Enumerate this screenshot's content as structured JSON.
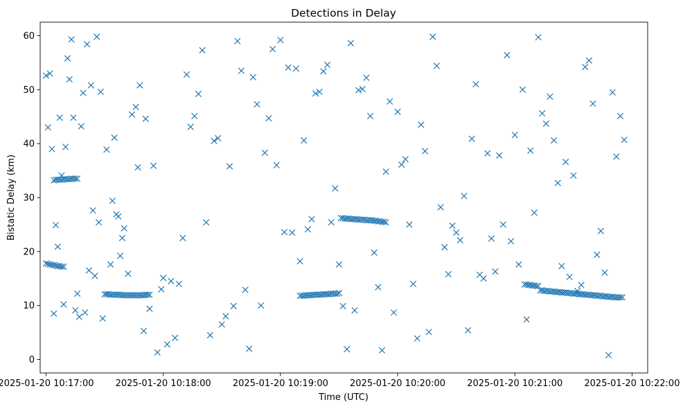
{
  "chart_data": {
    "type": "scatter",
    "title": "Detections in Delay",
    "xlabel": "Time (UTC)",
    "ylabel": "Bistatic Delay (km)",
    "xlim": [
      "2025-01-20 10:16:57",
      "2025-01-20 10:22:08"
    ],
    "ylim": [
      -2.5,
      62.5
    ],
    "x_ticks": [
      "2025-01-20 10:17:00",
      "2025-01-20 10:18:00",
      "2025-01-20 10:19:00",
      "2025-01-20 10:20:00",
      "2025-01-20 10:21:00",
      "2025-01-20 10:22:00"
    ],
    "y_ticks": [
      0,
      10,
      20,
      30,
      40,
      50,
      60
    ],
    "grid": false,
    "marker": "x",
    "color": "#1f77b4",
    "series": [
      {
        "x": [
          "10:17:00",
          "10:17:01",
          "10:17:02",
          "10:17:03",
          "10:17:04",
          "10:17:05",
          "10:17:06",
          "10:17:07",
          "10:17:08",
          "10:17:09",
          "10:17:04",
          "10:17:05",
          "10:17:06",
          "10:17:07",
          "10:17:08",
          "10:17:09",
          "10:17:10",
          "10:17:11",
          "10:17:12",
          "10:17:13",
          "10:17:14",
          "10:17:15",
          "10:17:16",
          "10:17:30",
          "10:17:31",
          "10:17:32",
          "10:17:33",
          "10:17:34",
          "10:17:35",
          "10:17:36",
          "10:17:37",
          "10:17:38",
          "10:17:39",
          "10:17:40",
          "10:17:41",
          "10:17:42",
          "10:17:43",
          "10:17:44",
          "10:17:45",
          "10:17:46",
          "10:17:47",
          "10:17:48",
          "10:17:49",
          "10:17:50",
          "10:17:51",
          "10:17:52",
          "10:17:53",
          "10:19:10",
          "10:19:11",
          "10:19:12",
          "10:19:13",
          "10:19:14",
          "10:19:15",
          "10:19:16",
          "10:19:17",
          "10:19:18",
          "10:19:19",
          "10:19:20",
          "10:19:21",
          "10:19:22",
          "10:19:23",
          "10:19:24",
          "10:19:25",
          "10:19:26",
          "10:19:27",
          "10:19:28",
          "10:19:29",
          "10:19:30",
          "10:19:31",
          "10:19:32",
          "10:19:33",
          "10:19:34",
          "10:19:35",
          "10:19:36",
          "10:19:37",
          "10:19:38",
          "10:19:39",
          "10:19:40",
          "10:19:41",
          "10:19:42",
          "10:19:43",
          "10:19:44",
          "10:19:45",
          "10:19:46",
          "10:19:47",
          "10:19:48",
          "10:19:49",
          "10:19:50",
          "10:19:51",
          "10:19:52",
          "10:19:53",
          "10:19:54",
          "10:21:05",
          "10:21:06",
          "10:21:07",
          "10:21:08",
          "10:21:09",
          "10:21:10",
          "10:21:11",
          "10:21:12",
          "10:21:13",
          "10:21:14",
          "10:21:15",
          "10:21:16",
          "10:21:17",
          "10:21:18",
          "10:21:19",
          "10:21:20",
          "10:21:21",
          "10:21:22",
          "10:21:23",
          "10:21:24",
          "10:21:25",
          "10:21:26",
          "10:21:27",
          "10:21:28",
          "10:21:29",
          "10:21:30",
          "10:21:31",
          "10:21:32",
          "10:21:33",
          "10:21:34",
          "10:21:35",
          "10:21:36",
          "10:21:37",
          "10:21:38",
          "10:21:39",
          "10:21:40",
          "10:21:41",
          "10:21:42",
          "10:21:43",
          "10:21:44",
          "10:21:45",
          "10:21:46",
          "10:21:47",
          "10:21:48",
          "10:21:49",
          "10:21:50",
          "10:21:51",
          "10:21:52",
          "10:21:53",
          "10:21:54",
          "10:21:55",
          "10:17:00",
          "10:17:01",
          "10:17:02",
          "10:17:03",
          "10:17:04",
          "10:17:05",
          "10:17:06",
          "10:17:07",
          "10:17:08",
          "10:17:09",
          "10:17:10",
          "10:17:11",
          "10:17:12",
          "10:17:13",
          "10:17:14",
          "10:17:15",
          "10:17:16",
          "10:17:17",
          "10:17:18",
          "10:17:19",
          "10:17:20",
          "10:17:21",
          "10:17:22",
          "10:17:23",
          "10:17:24",
          "10:17:25",
          "10:17:26",
          "10:17:27",
          "10:17:28",
          "10:17:29",
          "10:17:31",
          "10:17:33",
          "10:17:34",
          "10:17:35",
          "10:17:36",
          "10:17:37",
          "10:17:38",
          "10:17:39",
          "10:17:40",
          "10:17:42",
          "10:17:44",
          "10:17:46",
          "10:17:47",
          "10:17:48",
          "10:17:50",
          "10:17:51",
          "10:17:53",
          "10:17:55",
          "10:17:57",
          "10:17:59",
          "10:18:00",
          "10:18:02",
          "10:18:04",
          "10:18:06",
          "10:18:08",
          "10:18:10",
          "10:18:12",
          "10:18:14",
          "10:18:16",
          "10:18:18",
          "10:18:20",
          "10:18:22",
          "10:18:24",
          "10:18:26",
          "10:18:28",
          "10:18:30",
          "10:18:32",
          "10:18:34",
          "10:18:36",
          "10:18:38",
          "10:18:40",
          "10:18:42",
          "10:18:44",
          "10:18:46",
          "10:18:48",
          "10:18:50",
          "10:18:52",
          "10:18:54",
          "10:18:56",
          "10:18:58",
          "10:19:00",
          "10:19:02",
          "10:19:04",
          "10:19:06",
          "10:19:08",
          "10:19:10",
          "10:19:12",
          "10:19:14",
          "10:19:16",
          "10:19:18",
          "10:19:20",
          "10:19:22",
          "10:19:24",
          "10:19:26",
          "10:19:28",
          "10:19:30",
          "10:19:32",
          "10:19:34",
          "10:19:36",
          "10:19:38",
          "10:19:40",
          "10:19:42",
          "10:19:44",
          "10:19:46",
          "10:19:48",
          "10:19:50",
          "10:19:52",
          "10:19:54",
          "10:19:56",
          "10:19:58",
          "10:20:00",
          "10:20:02",
          "10:20:04",
          "10:20:06",
          "10:20:08",
          "10:20:10",
          "10:20:12",
          "10:20:14",
          "10:20:16",
          "10:20:18",
          "10:20:20",
          "10:20:22",
          "10:20:24",
          "10:20:26",
          "10:20:28",
          "10:20:30",
          "10:20:32",
          "10:20:34",
          "10:20:36",
          "10:20:38",
          "10:20:40",
          "10:20:42",
          "10:20:44",
          "10:20:46",
          "10:20:48",
          "10:20:50",
          "10:20:52",
          "10:20:54",
          "10:20:56",
          "10:20:58",
          "10:21:00",
          "10:21:02",
          "10:21:04",
          "10:21:06",
          "10:21:08",
          "10:21:10",
          "10:21:12",
          "10:21:14",
          "10:21:16",
          "10:21:18",
          "10:21:20",
          "10:21:22",
          "10:21:24",
          "10:21:26",
          "10:21:28",
          "10:21:30",
          "10:21:32",
          "10:21:34",
          "10:21:36",
          "10:21:38",
          "10:21:40",
          "10:21:42",
          "10:21:44",
          "10:21:46",
          "10:21:48",
          "10:21:50",
          "10:21:52",
          "10:21:54",
          "10:21:56"
        ],
        "y": [
          17.8,
          17.7,
          17.6,
          17.5,
          17.5,
          17.4,
          17.3,
          17.3,
          17.2,
          17.2,
          33.2,
          33.3,
          33.3,
          33.3,
          33.3,
          33.4,
          33.4,
          33.4,
          33.4,
          33.5,
          33.5,
          33.5,
          33.5,
          12.1,
          12.1,
          12.1,
          12.0,
          12.0,
          12.0,
          12.0,
          12.0,
          12.0,
          11.9,
          11.9,
          11.9,
          11.9,
          11.9,
          11.9,
          11.9,
          11.9,
          11.9,
          11.9,
          11.9,
          11.9,
          12.0,
          12.0,
          12.0,
          11.8,
          11.8,
          11.8,
          11.9,
          11.9,
          11.9,
          11.9,
          12.0,
          12.0,
          12.0,
          12.0,
          12.0,
          12.1,
          12.1,
          12.1,
          12.1,
          12.2,
          12.2,
          12.2,
          12.2,
          12.3,
          26.2,
          26.2,
          26.1,
          26.1,
          26.1,
          26.0,
          26.0,
          26.0,
          26.0,
          25.9,
          25.9,
          25.9,
          25.9,
          25.8,
          25.8,
          25.8,
          25.8,
          25.7,
          25.7,
          25.6,
          25.6,
          25.5,
          25.5,
          25.4,
          13.9,
          13.9,
          13.8,
          13.8,
          13.7,
          13.7,
          13.6,
          13.6,
          12.8,
          12.8,
          12.7,
          12.7,
          12.7,
          12.6,
          12.6,
          12.6,
          12.5,
          12.5,
          12.5,
          12.4,
          12.4,
          12.4,
          12.3,
          12.3,
          12.3,
          12.2,
          12.2,
          12.2,
          12.1,
          12.1,
          12.1,
          12.0,
          12.0,
          12.0,
          11.9,
          11.9,
          11.9,
          11.8,
          11.8,
          11.8,
          11.7,
          11.7,
          11.7,
          11.6,
          11.6,
          11.6,
          11.5,
          11.5,
          11.5,
          11.5,
          11.5,
          52.6,
          43.0,
          53.0,
          39.0,
          8.5,
          24.9,
          20.9,
          44.8,
          34.1,
          10.2,
          39.4,
          55.8,
          51.9,
          59.3,
          44.8,
          9.1,
          12.2,
          7.9,
          43.2,
          49.4,
          8.7,
          58.4,
          16.5,
          50.8,
          27.6,
          15.5,
          59.8,
          25.4,
          49.6,
          7.6,
          38.9,
          17.6,
          29.4,
          41.1,
          26.9,
          26.5,
          19.2,
          22.5,
          24.3,
          15.9,
          45.4,
          46.8,
          35.6,
          50.8,
          5.3,
          44.6,
          9.4,
          35.9,
          1.3,
          13.0,
          15.1,
          2.8,
          14.5,
          4.0,
          14.0,
          22.5,
          52.8,
          43.1,
          45.1,
          49.2,
          57.3,
          25.4,
          4.5,
          40.5,
          41.0,
          6.5,
          8.0,
          35.8,
          9.9,
          59.0,
          53.5,
          12.9,
          2.0,
          52.3,
          47.3,
          10.0,
          38.3,
          44.7,
          57.5,
          36.0,
          59.2,
          23.6,
          54.1,
          23.5,
          53.9,
          18.2,
          40.6,
          24.1,
          26.0,
          49.3,
          49.6,
          53.4,
          54.6,
          25.4,
          31.7,
          17.6,
          9.9,
          1.9,
          58.6,
          9.1,
          49.9,
          50.1,
          52.2,
          45.1,
          19.8,
          13.4,
          1.7,
          34.8,
          47.8,
          8.7,
          45.9,
          36.1,
          37.1,
          25.0,
          14.0,
          3.9,
          43.5,
          38.6,
          5.1,
          59.8,
          54.4,
          28.2,
          20.8,
          15.8,
          24.8,
          23.5,
          22.1,
          30.3,
          5.4,
          40.9,
          51.0,
          15.7,
          15.0,
          38.2,
          22.4,
          16.3,
          37.8,
          25.0,
          56.4,
          21.9,
          41.6,
          17.6,
          50.0,
          7.4,
          38.7,
          27.2,
          59.7,
          45.6,
          43.7,
          48.7,
          40.6,
          32.7,
          17.3,
          36.6,
          15.3,
          34.1,
          12.7,
          13.8,
          54.2,
          55.4,
          47.4,
          19.4,
          23.8,
          16.1,
          0.8,
          49.5,
          37.6,
          45.1,
          40.7
        ]
      }
    ]
  }
}
